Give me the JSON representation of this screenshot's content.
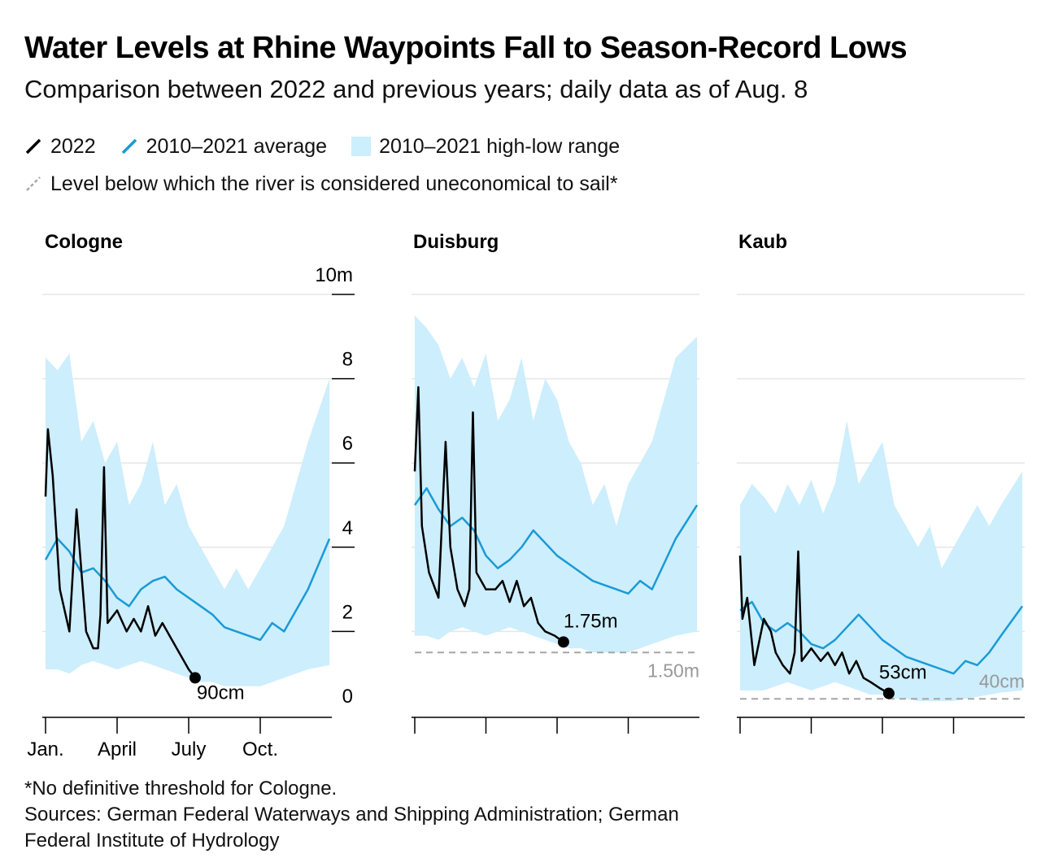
{
  "title": "Water Levels at Rhine Waypoints Fall to Season-Record Lows",
  "subtitle": "Comparison between 2022 and previous years; daily data as of Aug. 8",
  "legend": {
    "line_2022": "2022",
    "average": "2010–2021 average",
    "range": "2010–2021 high-low range",
    "threshold": "Level below which the river is considered uneconomical to sail*"
  },
  "colors": {
    "line_2022": "#000000",
    "average": "#1a9ad6",
    "range": "#cdeefc",
    "threshold": "#a6a6a6",
    "grid": "#e6e6e6"
  },
  "y_axis": {
    "ticks": [
      "10m",
      "8",
      "6",
      "4",
      "2",
      "0"
    ]
  },
  "x_axis": {
    "ticks": [
      "Jan.",
      "April",
      "July",
      "Oct."
    ]
  },
  "footnote": {
    "line1": "*No definitive threshold for Cologne.",
    "line2": "Sources: German Federal Waterways and Shipping Administration; German",
    "line3": "Federal Institute of Hydrology"
  },
  "chart_data": [
    {
      "type": "line",
      "title": "Cologne",
      "ylim": [
        0,
        10
      ],
      "x_unit": "month",
      "end_label": "90cm",
      "threshold": null,
      "series": [
        {
          "name": "2022",
          "x": [
            1,
            1.1,
            1.3,
            1.6,
            2.0,
            2.3,
            2.7,
            3.0,
            3.2,
            3.3,
            3.45,
            3.6,
            4.0,
            4.4,
            4.7,
            5.0,
            5.3,
            5.6,
            5.9,
            6.2,
            6.5,
            7.0,
            7.27
          ],
          "values": [
            5.2,
            6.8,
            5.7,
            3.0,
            2.0,
            4.9,
            2.0,
            1.6,
            1.6,
            2.4,
            5.9,
            2.2,
            2.5,
            2.0,
            2.3,
            2.0,
            2.6,
            1.9,
            2.2,
            1.9,
            1.6,
            1.1,
            0.9
          ]
        },
        {
          "name": "2010–2021 average",
          "x": [
            1,
            1.5,
            2,
            2.5,
            3,
            3.5,
            4,
            4.5,
            5,
            5.5,
            6,
            6.5,
            7,
            7.5,
            8,
            8.5,
            9,
            9.5,
            10,
            10.5,
            11,
            11.5,
            12,
            12.9
          ],
          "values": [
            3.7,
            4.2,
            3.9,
            3.4,
            3.5,
            3.2,
            2.8,
            2.6,
            3.0,
            3.2,
            3.3,
            3.0,
            2.8,
            2.6,
            2.4,
            2.1,
            2.0,
            1.9,
            1.8,
            2.2,
            2.0,
            2.5,
            3.0,
            4.2
          ]
        },
        {
          "name": "2010–2021 high-low range",
          "x": [
            1,
            1.5,
            2,
            2.5,
            3,
            3.5,
            4,
            4.5,
            5,
            5.5,
            6,
            6.5,
            7,
            7.5,
            8,
            8.5,
            9,
            9.5,
            10,
            10.5,
            11,
            11.5,
            12,
            12.9
          ],
          "high": [
            8.5,
            8.2,
            8.6,
            6.5,
            7.0,
            6.0,
            6.5,
            5.0,
            5.5,
            6.5,
            5.0,
            5.5,
            4.5,
            4.0,
            3.5,
            3.0,
            3.5,
            3.0,
            3.5,
            4.0,
            4.5,
            5.5,
            6.5,
            8.0
          ],
          "low": [
            1.1,
            1.1,
            1.0,
            1.2,
            1.3,
            1.2,
            1.1,
            1.2,
            1.3,
            1.2,
            1.1,
            1.0,
            0.9,
            0.8,
            0.8,
            0.7,
            0.7,
            0.7,
            0.7,
            0.8,
            0.9,
            1.0,
            1.1,
            1.2
          ]
        }
      ]
    },
    {
      "type": "line",
      "title": "Duisburg",
      "ylim": [
        0,
        10
      ],
      "x_unit": "month",
      "end_label": "1.75m",
      "threshold": {
        "value": 1.5,
        "label": "1.50m"
      },
      "series": [
        {
          "name": "2022",
          "x": [
            1,
            1.15,
            1.3,
            1.6,
            2.0,
            2.3,
            2.5,
            2.8,
            3.1,
            3.3,
            3.45,
            3.6,
            4.0,
            4.4,
            4.7,
            5.0,
            5.3,
            5.6,
            5.9,
            6.2,
            6.5,
            6.9,
            7.27
          ],
          "values": [
            5.8,
            7.8,
            4.5,
            3.4,
            2.8,
            6.5,
            4.0,
            3.0,
            2.6,
            3.0,
            7.2,
            3.4,
            3.0,
            3.0,
            3.2,
            2.7,
            3.2,
            2.6,
            2.8,
            2.2,
            2.0,
            1.9,
            1.75
          ]
        },
        {
          "name": "2010–2021 average",
          "x": [
            1,
            1.5,
            2,
            2.5,
            3,
            3.5,
            4,
            4.5,
            5,
            5.5,
            6,
            6.5,
            7,
            7.5,
            8,
            8.5,
            9,
            9.5,
            10,
            10.5,
            11,
            11.5,
            12,
            12.9
          ],
          "values": [
            5.0,
            5.4,
            4.9,
            4.5,
            4.7,
            4.4,
            3.8,
            3.5,
            3.7,
            4.0,
            4.4,
            4.1,
            3.8,
            3.6,
            3.4,
            3.2,
            3.1,
            3.0,
            2.9,
            3.2,
            3.0,
            3.6,
            4.2,
            5.0
          ]
        },
        {
          "name": "2010–2021 high-low range",
          "x": [
            1,
            1.5,
            2,
            2.5,
            3,
            3.5,
            4,
            4.5,
            5,
            5.5,
            6,
            6.5,
            7,
            7.5,
            8,
            8.5,
            9,
            9.5,
            10,
            10.5,
            11,
            11.5,
            12,
            12.9
          ],
          "high": [
            9.5,
            9.2,
            8.8,
            8.0,
            8.5,
            7.8,
            8.6,
            7.0,
            7.5,
            8.5,
            7.0,
            8.0,
            7.5,
            6.5,
            6.0,
            5.0,
            5.5,
            4.5,
            5.5,
            6.0,
            6.5,
            7.5,
            8.5,
            9.0
          ],
          "low": [
            1.9,
            1.9,
            1.8,
            2.0,
            2.1,
            2.0,
            1.9,
            2.0,
            2.1,
            2.0,
            1.9,
            1.8,
            1.7,
            1.6,
            1.6,
            1.5,
            1.5,
            1.5,
            1.5,
            1.6,
            1.7,
            1.8,
            1.9,
            2.0
          ]
        }
      ]
    },
    {
      "type": "line",
      "title": "Kaub",
      "ylim": [
        0,
        10
      ],
      "x_unit": "month",
      "end_label": "53cm",
      "threshold": {
        "value": 0.4,
        "label": "40cm"
      },
      "series": [
        {
          "name": "2022",
          "x": [
            1,
            1.1,
            1.3,
            1.6,
            2.0,
            2.3,
            2.5,
            2.8,
            3.1,
            3.3,
            3.45,
            3.6,
            4.0,
            4.4,
            4.7,
            5.0,
            5.3,
            5.6,
            5.9,
            6.2,
            6.5,
            6.9,
            7.27
          ],
          "values": [
            3.8,
            2.3,
            2.8,
            1.2,
            2.3,
            2.0,
            1.5,
            1.2,
            1.0,
            1.5,
            3.9,
            1.3,
            1.6,
            1.3,
            1.5,
            1.2,
            1.5,
            1.0,
            1.3,
            0.9,
            0.8,
            0.65,
            0.53
          ]
        },
        {
          "name": "2010–2021 average",
          "x": [
            1,
            1.5,
            2,
            2.5,
            3,
            3.5,
            4,
            4.5,
            5,
            5.5,
            6,
            6.5,
            7,
            7.5,
            8,
            8.5,
            9,
            9.5,
            10,
            10.5,
            11,
            11.5,
            12,
            12.9
          ],
          "values": [
            2.5,
            2.7,
            2.2,
            2.0,
            2.2,
            2.0,
            1.7,
            1.6,
            1.8,
            2.1,
            2.4,
            2.1,
            1.8,
            1.6,
            1.4,
            1.3,
            1.2,
            1.1,
            1.0,
            1.3,
            1.2,
            1.5,
            1.9,
            2.6
          ]
        },
        {
          "name": "2010–2021 high-low range",
          "x": [
            1,
            1.5,
            2,
            2.5,
            3,
            3.5,
            4,
            4.5,
            5,
            5.5,
            6,
            6.5,
            7,
            7.5,
            8,
            8.5,
            9,
            9.5,
            10,
            10.5,
            11,
            11.5,
            12,
            12.9
          ],
          "high": [
            5.0,
            5.5,
            5.2,
            4.8,
            5.5,
            5.0,
            5.6,
            4.8,
            5.5,
            7.0,
            5.5,
            6.0,
            6.5,
            5.0,
            4.5,
            4.0,
            4.5,
            3.5,
            4.0,
            4.5,
            5.0,
            4.5,
            5.0,
            5.8
          ],
          "low": [
            0.6,
            0.6,
            0.6,
            0.7,
            0.8,
            0.7,
            0.6,
            0.7,
            0.8,
            0.7,
            0.6,
            0.5,
            0.5,
            0.4,
            0.4,
            0.35,
            0.35,
            0.35,
            0.35,
            0.4,
            0.45,
            0.5,
            0.55,
            0.6
          ]
        }
      ]
    }
  ]
}
